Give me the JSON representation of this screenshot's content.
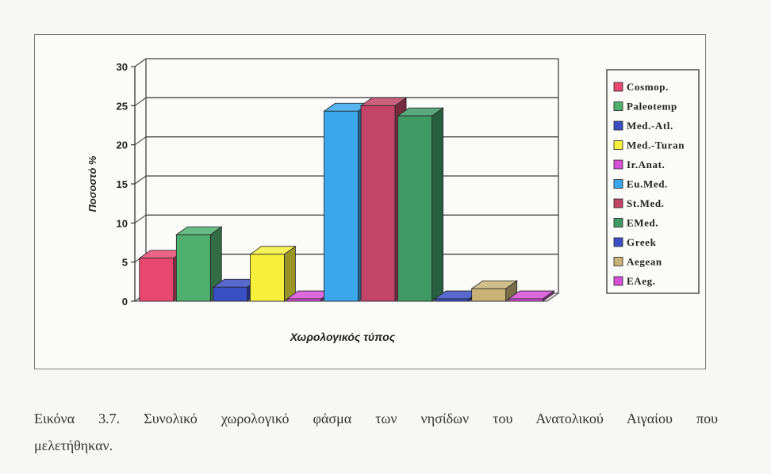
{
  "chart_data": {
    "type": "bar",
    "style": "3d",
    "ylabel": "Ποσοστό %",
    "xlabel": "Χωρολογικός τύπος",
    "ylim": [
      0,
      30
    ],
    "yticks": [
      "0",
      "5",
      "10",
      "15",
      "20",
      "25",
      "30"
    ],
    "grid": true,
    "legend_position": "right",
    "series": [
      {
        "name": "Cosmop.",
        "value": 5.5,
        "color": "#e8486f"
      },
      {
        "name": "Paleotemp",
        "value": 8.5,
        "color": "#4faf6f"
      },
      {
        "name": "Med.-Atl.",
        "value": 1.8,
        "color": "#3a4fc4"
      },
      {
        "name": "Med.-Turan",
        "value": 6.0,
        "color": "#f6ef3c"
      },
      {
        "name": "Ir.Anat.",
        "value": 0.3,
        "color": "#d84fd8"
      },
      {
        "name": "Eu.Med.",
        "value": 24.3,
        "color": "#3aa7ec"
      },
      {
        "name": "St.Med.",
        "value": 25.0,
        "color": "#c24466"
      },
      {
        "name": "EMed.",
        "value": 23.7,
        "color": "#3f9a66"
      },
      {
        "name": "Greek",
        "value": 0.3,
        "color": "#3a4fc4"
      },
      {
        "name": "Aegean",
        "value": 1.6,
        "color": "#c8b276"
      },
      {
        "name": "EAeg.",
        "value": 0.3,
        "color": "#d84fd8"
      }
    ]
  },
  "caption": {
    "line1": "Εικόνα 3.7. Συνολικό χωρολογικό φάσμα των νησίδων του Ανατολικού Αιγαίου που",
    "line2": "μελετήθηκαν."
  }
}
